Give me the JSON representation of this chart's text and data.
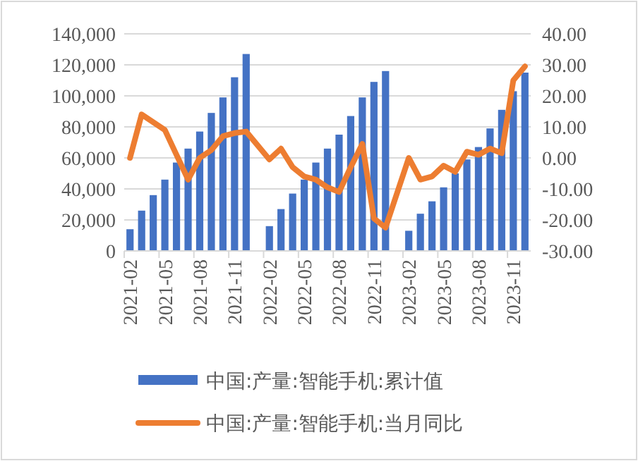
{
  "chart_data": {
    "type": "bar",
    "categories": [
      "2021-02",
      null,
      null,
      "2021-05",
      null,
      null,
      "2021-08",
      null,
      null,
      "2021-11",
      null,
      null,
      "2022-02",
      null,
      null,
      "2022-05",
      null,
      null,
      "2022-08",
      null,
      null,
      "2022-11",
      null,
      null,
      "2023-02",
      null,
      null,
      "2023-05",
      null,
      null,
      "2023-08",
      null,
      null,
      "2023-11",
      null
    ],
    "series": [
      {
        "name": "中国:产量:智能手机:累计值",
        "color": "#4472c4",
        "values": [
          14000,
          26000,
          36000,
          46000,
          57000,
          66000,
          77000,
          89000,
          99000,
          112000,
          127000,
          null,
          16000,
          27000,
          37000,
          46000,
          57000,
          66000,
          75000,
          87000,
          99000,
          109000,
          116000,
          null,
          13000,
          24000,
          32000,
          41000,
          50000,
          59000,
          67000,
          79000,
          91000,
          103000,
          115000
        ]
      },
      {
        "name": "中国:产量:智能手机:当月同比",
        "type": "line",
        "axis": "y2",
        "color": "#ed7d31",
        "values": [
          0,
          14,
          11.5,
          9,
          1,
          -7,
          0,
          2.5,
          7,
          8,
          8.5,
          null,
          -0.5,
          3,
          -3,
          -6,
          -7,
          -9.5,
          -11,
          -3,
          4.5,
          -19.5,
          -22.5,
          null,
          0,
          -7,
          -6,
          -2.5,
          -4.5,
          2,
          1,
          3,
          1.5,
          25,
          29.5
        ]
      }
    ],
    "ylim": [
      0,
      140000
    ],
    "yticks": [
      0,
      {
        "value": 20000,
        "label": "20,000"
      },
      {
        "value": 40000,
        "label": "40,000"
      },
      {
        "value": 60000,
        "label": "60,000"
      },
      {
        "value": 80000,
        "label": "80,000"
      },
      {
        "value": 100000,
        "label": "100,000"
      },
      {
        "value": 120000,
        "label": "120,000"
      },
      {
        "value": 140000,
        "label": "140,000"
      }
    ],
    "y2lim": [
      -30,
      40
    ],
    "y2ticks": [
      {
        "value": -30,
        "label": "-30.00"
      },
      {
        "value": -20,
        "label": "-20.00"
      },
      {
        "value": -10,
        "label": "-10.00"
      },
      {
        "value": 0,
        "label": "0.00"
      },
      {
        "value": 10,
        "label": "10.00"
      },
      {
        "value": 20,
        "label": "20.00"
      },
      {
        "value": 30,
        "label": "30.00"
      },
      {
        "value": 40,
        "label": "40.00"
      }
    ],
    "grid": "y",
    "legend": "bottom",
    "marker": "none",
    "line_style": "solid"
  }
}
